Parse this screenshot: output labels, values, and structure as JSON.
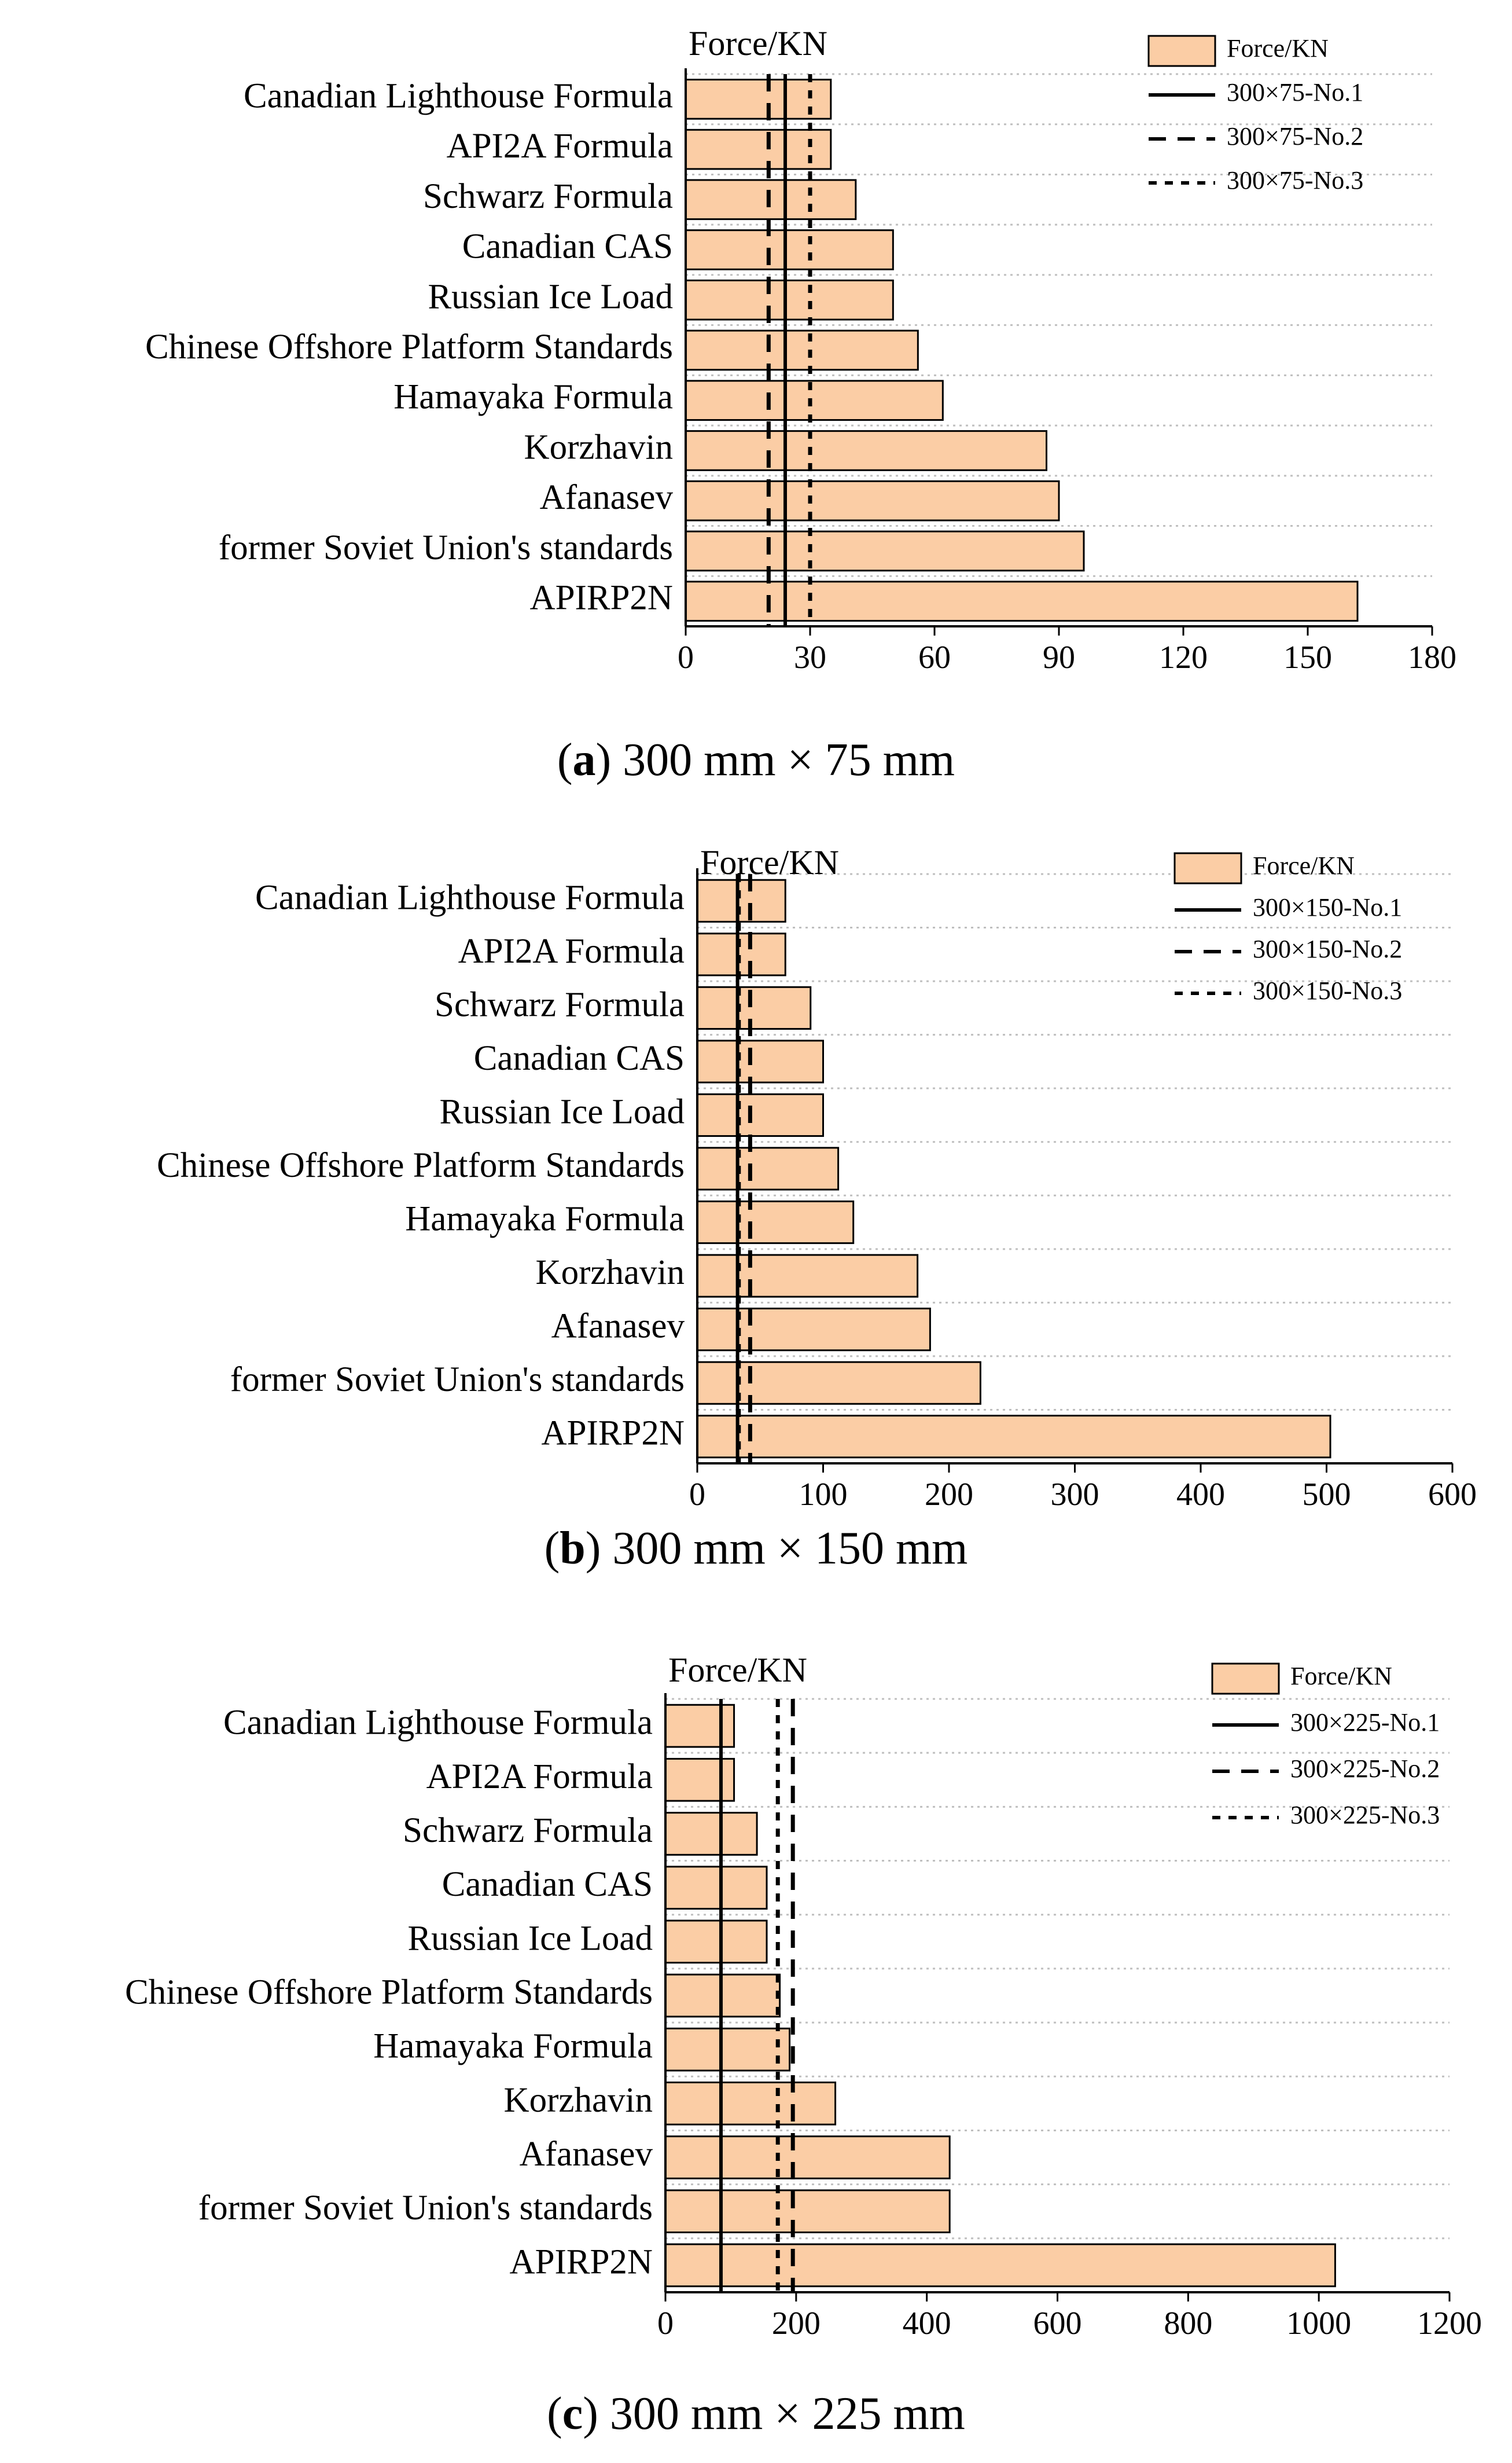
{
  "charts": [
    {
      "chart_data": {
        "type": "bar",
        "orientation": "horizontal",
        "axis_title": "Force/KN",
        "categories": [
          "Canadian Lighthouse Formula",
          "API2A Formula",
          "Schwarz Formula",
          "Canadian CAS",
          "Russian Ice Load",
          "Chinese Offshore Platform Standards",
          "Hamayaka Formula",
          "Korzhavin",
          "Afanasev",
          "former Soviet Union's standards",
          "APIRP2N"
        ],
        "values": [
          35,
          35,
          41,
          50,
          50,
          56,
          62,
          87,
          90,
          96,
          162
        ],
        "xlim": [
          0,
          180
        ],
        "xticks": [
          0,
          30,
          60,
          90,
          120,
          150,
          180
        ],
        "reference_lines": [
          {
            "name": "300×75-No.1",
            "style": "solid",
            "value": 24
          },
          {
            "name": "300×75-No.2",
            "style": "dashed",
            "value": 20
          },
          {
            "name": "300×75-No.3",
            "style": "dotted",
            "value": 30
          }
        ],
        "legend": {
          "bar_label": "Force/KN",
          "position": "top-right"
        }
      },
      "caption": {
        "letter": "a",
        "text": " 300 mm × 75 mm"
      }
    },
    {
      "chart_data": {
        "type": "bar",
        "orientation": "horizontal",
        "axis_title": "Force/KN",
        "categories": [
          "Canadian Lighthouse Formula",
          "API2A Formula",
          "Schwarz Formula",
          "Canadian CAS",
          "Russian Ice Load",
          "Chinese Offshore Platform Standards",
          "Hamayaka Formula",
          "Korzhavin",
          "Afanasev",
          "former Soviet Union's standards",
          "APIRP2N"
        ],
        "values": [
          70,
          70,
          90,
          100,
          100,
          112,
          124,
          175,
          185,
          225,
          503
        ],
        "xlim": [
          0,
          600
        ],
        "xticks": [
          0,
          100,
          200,
          300,
          400,
          500,
          600
        ],
        "reference_lines": [
          {
            "name": "300×150-No.1",
            "style": "solid",
            "value": 32
          },
          {
            "name": "300×150-No.2",
            "style": "dashed",
            "value": 42
          },
          {
            "name": "300×150-No.3",
            "style": "dotted",
            "value": 33
          }
        ],
        "legend": {
          "bar_label": "Force/KN",
          "position": "top-right"
        }
      },
      "caption": {
        "letter": "b",
        "text": " 300 mm × 150 mm"
      }
    },
    {
      "chart_data": {
        "type": "bar",
        "orientation": "horizontal",
        "axis_title": "Force/KN",
        "categories": [
          "Canadian Lighthouse Formula",
          "API2A Formula",
          "Schwarz Formula",
          "Canadian CAS",
          "Russian Ice Load",
          "Chinese Offshore Platform Standards",
          "Hamayaka Formula",
          "Korzhavin",
          "Afanasev",
          "former Soviet Union's standards",
          "APIRP2N"
        ],
        "values": [
          105,
          105,
          140,
          155,
          155,
          175,
          190,
          260,
          435,
          435,
          1025
        ],
        "xlim": [
          0,
          1200
        ],
        "xticks": [
          0,
          200,
          400,
          600,
          800,
          1000,
          1200
        ],
        "reference_lines": [
          {
            "name": "300×225-No.1",
            "style": "solid",
            "value": 85
          },
          {
            "name": "300×225-No.2",
            "style": "dashed",
            "value": 195
          },
          {
            "name": "300×225-No.3",
            "style": "dotted",
            "value": 172
          }
        ],
        "legend": {
          "bar_label": "Force/KN",
          "position": "top-right"
        }
      },
      "caption": {
        "letter": "c",
        "text": " 300 mm × 225 mm"
      }
    }
  ]
}
